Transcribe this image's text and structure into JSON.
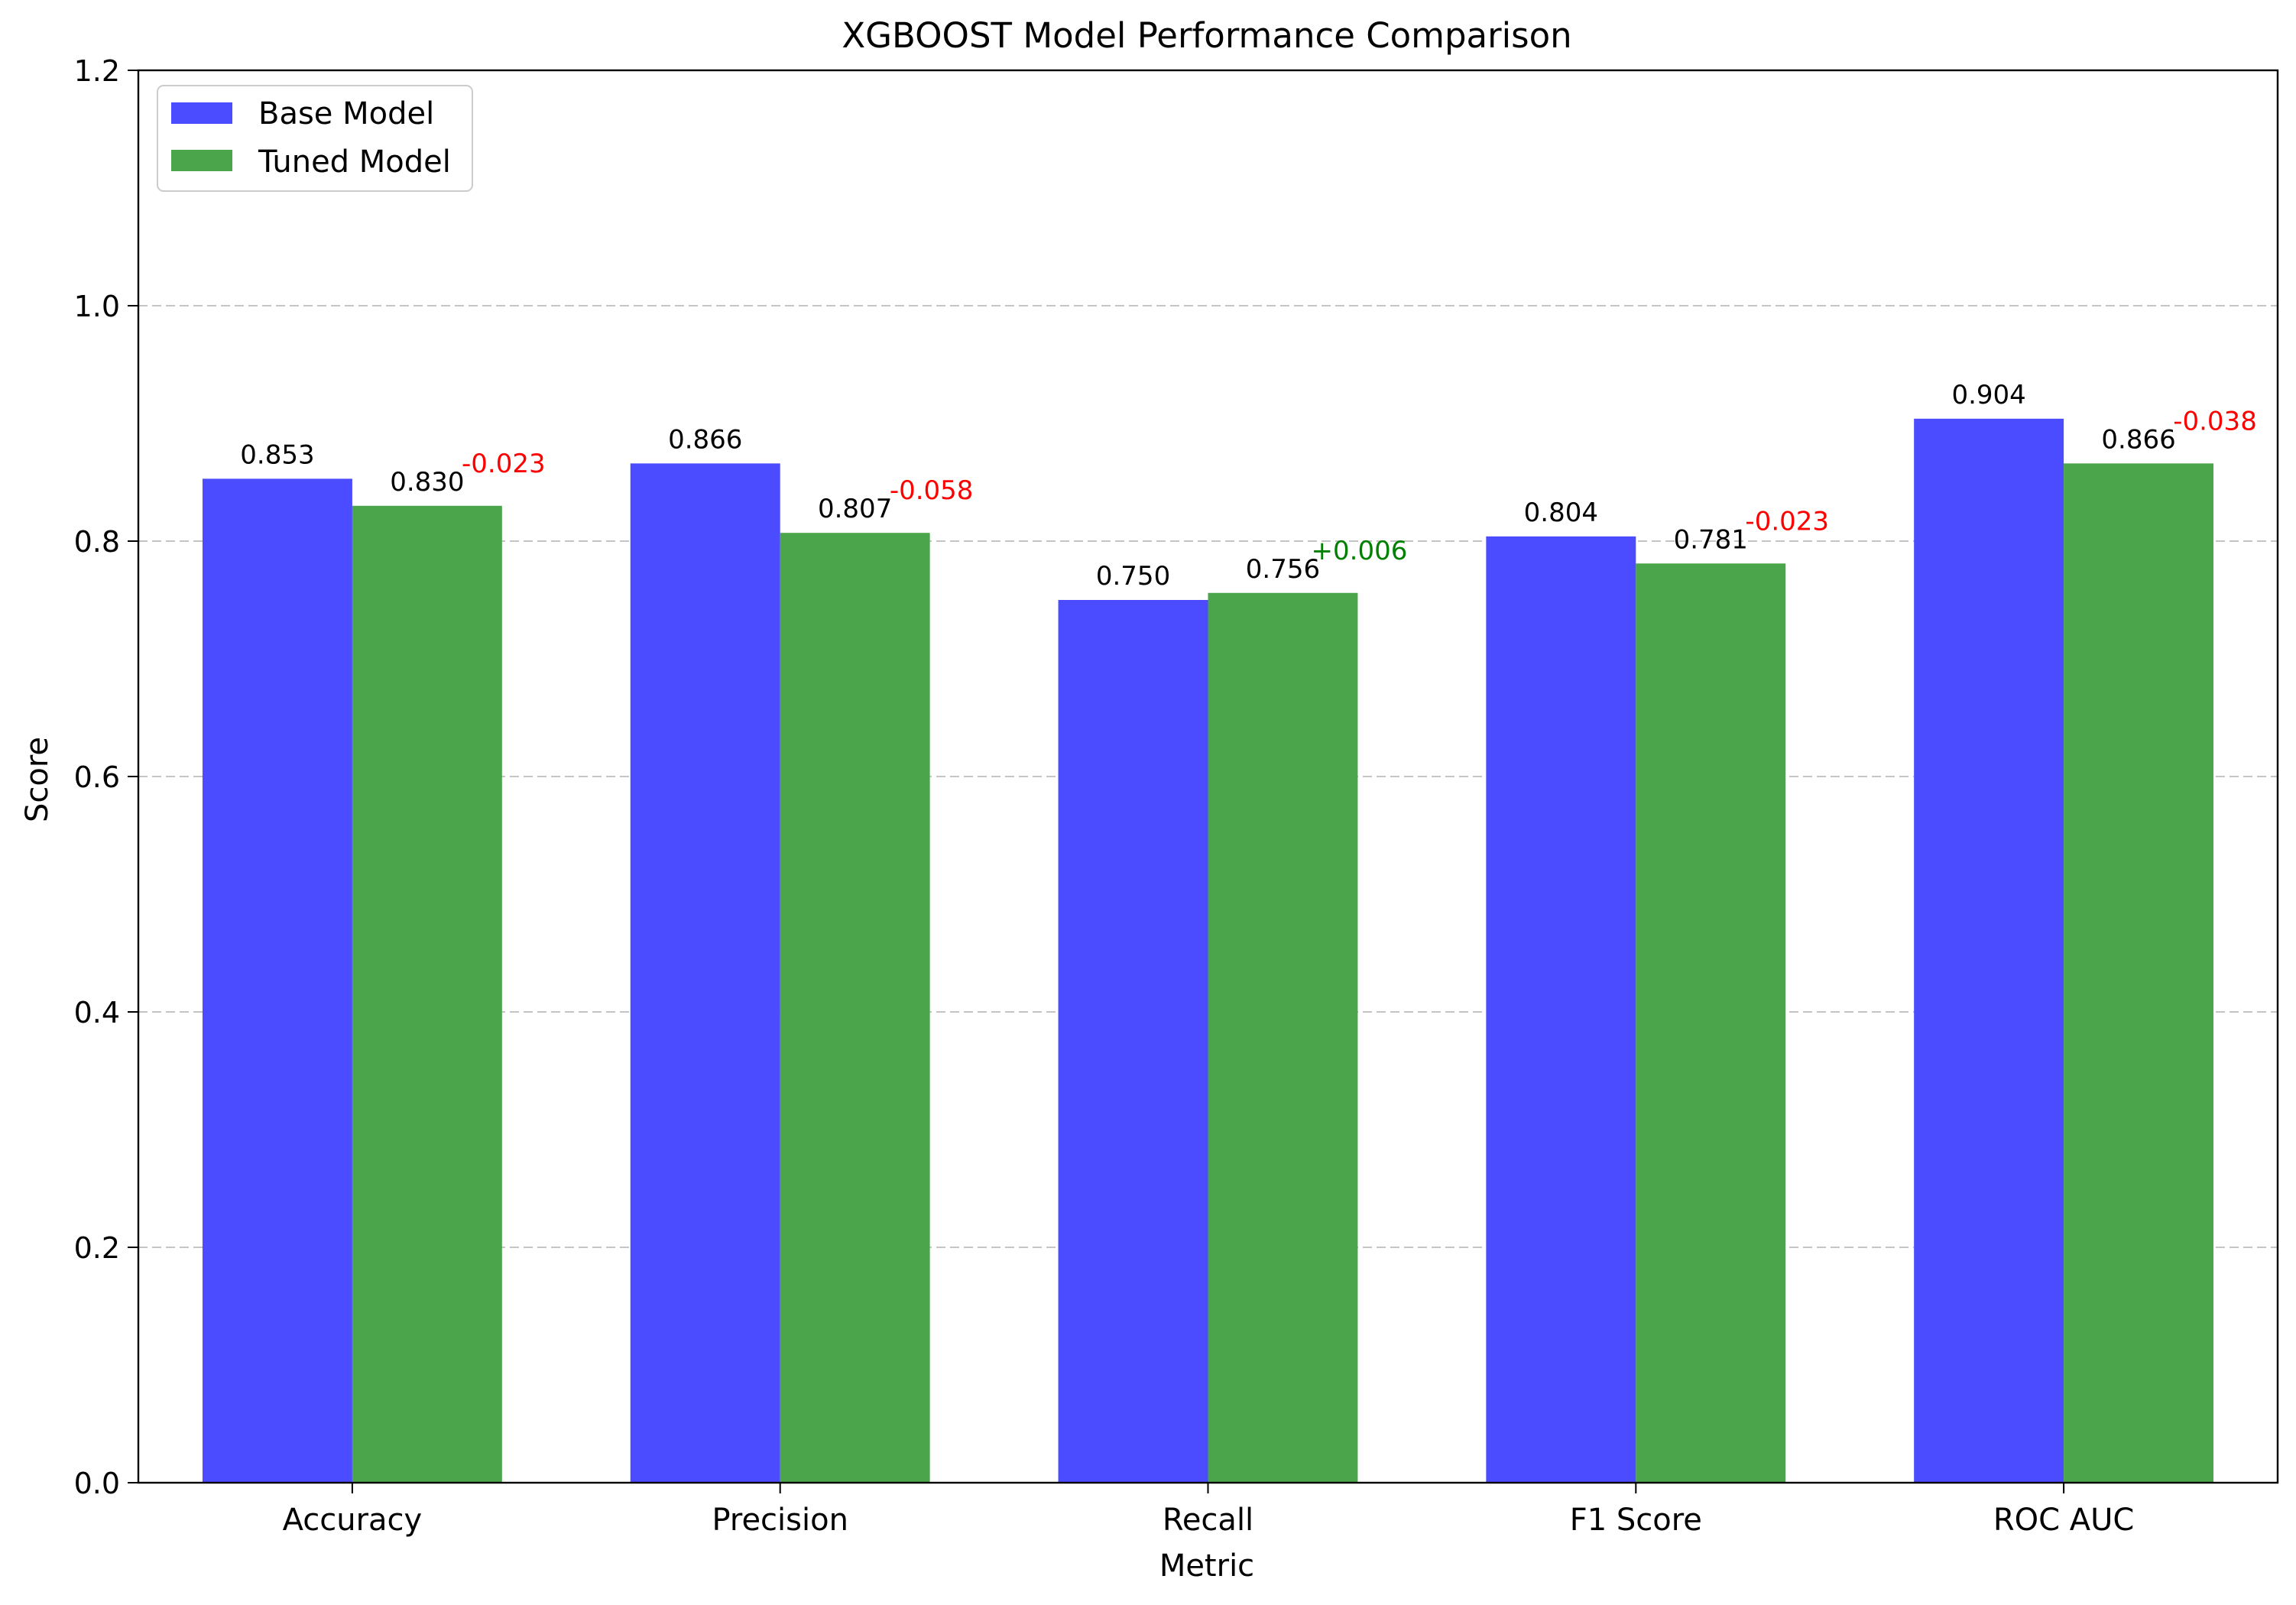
{
  "chart_data": {
    "type": "bar",
    "title": "XGBOOST Model Performance Comparison",
    "xlabel": "Metric",
    "ylabel": "Score",
    "ylim": [
      0,
      1.2
    ],
    "yticks": [
      0.0,
      0.2,
      0.4,
      0.6,
      0.8,
      1.0,
      1.2
    ],
    "ytick_labels": [
      "0.0",
      "0.2",
      "0.4",
      "0.6",
      "0.8",
      "1.0",
      "1.2"
    ],
    "grid": "y-dashed",
    "legend_position": "top-left",
    "categories": [
      "Accuracy",
      "Precision",
      "Recall",
      "F1 Score",
      "ROC AUC"
    ],
    "series": [
      {
        "name": "Base Model",
        "color": "#4b4bff",
        "values": [
          0.853,
          0.866,
          0.75,
          0.804,
          0.904
        ],
        "labels": [
          "0.853",
          "0.866",
          "0.750",
          "0.804",
          "0.904"
        ]
      },
      {
        "name": "Tuned Model",
        "color": "#4ba54b",
        "values": [
          0.83,
          0.807,
          0.756,
          0.781,
          0.866
        ],
        "labels": [
          "0.830",
          "0.807",
          "0.756",
          "0.781",
          "0.866"
        ]
      }
    ],
    "differences": [
      {
        "label": "-0.023",
        "color": "#ff0000"
      },
      {
        "label": "-0.058",
        "color": "#ff0000"
      },
      {
        "label": "+0.006",
        "color": "#008000"
      },
      {
        "label": "-0.023",
        "color": "#ff0000"
      },
      {
        "label": "-0.038",
        "color": "#ff0000"
      }
    ]
  }
}
